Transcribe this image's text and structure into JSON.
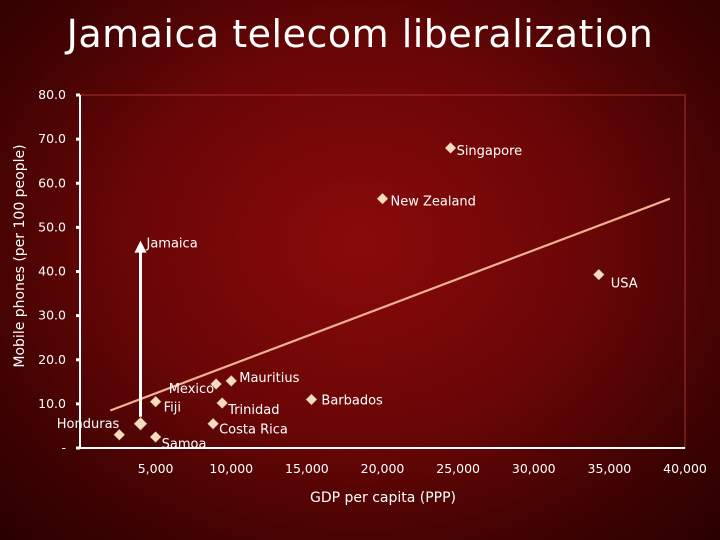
{
  "slide": {
    "title": "Jamaica telecom liberalization"
  },
  "chart_data": {
    "type": "scatter",
    "title": "",
    "xlabel": "GDP per capita (PPP)",
    "ylabel": "Mobile phones (per 100 people)",
    "xlim": [
      0,
      40000
    ],
    "ylim": [
      0,
      80
    ],
    "x_ticks": [
      {
        "value": 5000,
        "label": "5,000"
      },
      {
        "value": 10000,
        "label": "10,000"
      },
      {
        "value": 15000,
        "label": "15,000"
      },
      {
        "value": 20000,
        "label": "20,000"
      },
      {
        "value": 25000,
        "label": "25,000"
      },
      {
        "value": 30000,
        "label": "30,000"
      },
      {
        "value": 35000,
        "label": "35,000"
      },
      {
        "value": 40000,
        "label": "40,000"
      }
    ],
    "y_ticks": [
      {
        "value": 0,
        "label": "-"
      },
      {
        "value": 10,
        "label": "10.0"
      },
      {
        "value": 20,
        "label": "20.0"
      },
      {
        "value": 30,
        "label": "30.0"
      },
      {
        "value": 40,
        "label": "40.0"
      },
      {
        "value": 50,
        "label": "50.0"
      },
      {
        "value": 60,
        "label": "60.0"
      },
      {
        "value": 70,
        "label": "70.0"
      },
      {
        "value": 80,
        "label": "80.0"
      }
    ],
    "grid": false,
    "colors": {
      "marker": "#f5dcc0",
      "trendline": "#f0b090",
      "arrow": "#ffffff",
      "plot_border": "#a83030"
    },
    "points": [
      {
        "name": "Singapore",
        "x": 24500,
        "y": 68.0
      },
      {
        "name": "New Zealand",
        "x": 20000,
        "y": 56.5
      },
      {
        "name": "USA",
        "x": 34300,
        "y": 39.3
      },
      {
        "name": "Mauritius",
        "x": 10000,
        "y": 15.2
      },
      {
        "name": "Mexico",
        "x": 9000,
        "y": 14.5
      },
      {
        "name": "Fiji",
        "x": 5000,
        "y": 10.5
      },
      {
        "name": "Trinidad",
        "x": 9400,
        "y": 10.2
      },
      {
        "name": "Barbados",
        "x": 15300,
        "y": 11.0
      },
      {
        "name": "Costa Rica",
        "x": 8800,
        "y": 5.5
      },
      {
        "name": "Honduras",
        "x": 2600,
        "y": 3.0
      },
      {
        "name": "Samoa",
        "x": 5000,
        "y": 2.5
      },
      {
        "name": "Jamaica",
        "x": 4000,
        "y": 5.5
      }
    ],
    "trendline": {
      "x": [
        2000,
        39000
      ],
      "y": [
        8.5,
        56.5
      ]
    },
    "annotation": {
      "type": "arrow",
      "x": 4000,
      "y_from": 5.5,
      "y_to": 47.0
    }
  }
}
